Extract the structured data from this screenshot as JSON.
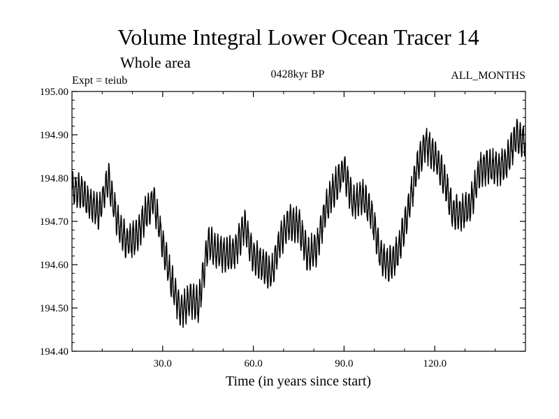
{
  "chart_data": {
    "type": "line",
    "title": "Volume Integral Lower Ocean Tracer 14",
    "subtitle": "Whole area",
    "expt_label": "Expt = teiub",
    "period_label": "0428kyr BP",
    "months_label": "ALL_MONTHS",
    "xlabel": "Time (in years since start)",
    "ylabel": "",
    "xlim": [
      0,
      150
    ],
    "ylim": [
      194.4,
      195.0
    ],
    "x_ticks": [
      30,
      60,
      90,
      120
    ],
    "x_tick_labels": [
      "30.0",
      "60.0",
      "90.0",
      "120.0"
    ],
    "y_ticks": [
      194.4,
      194.5,
      194.6,
      194.7,
      194.8,
      194.9,
      195.0
    ],
    "y_tick_labels": [
      "194.40",
      "194.50",
      "194.60",
      "194.70",
      "194.80",
      "194.90",
      "195.00"
    ],
    "grid": false,
    "samples_per_year": 12,
    "seasonal_amplitude": 0.035,
    "series": [
      {
        "name": "Tracer 14 volume integral",
        "color": "#000000",
        "trend": {
          "x": [
            0,
            3,
            6,
            9,
            12,
            15,
            18,
            21,
            24,
            27,
            30,
            33,
            36,
            39,
            42,
            45,
            48,
            51,
            54,
            57,
            60,
            63,
            66,
            69,
            72,
            75,
            78,
            81,
            84,
            87,
            90,
            93,
            96,
            99,
            102,
            105,
            108,
            111,
            114,
            117,
            120,
            123,
            126,
            129,
            132,
            135,
            138,
            141,
            144,
            147,
            150
          ],
          "values": [
            194.77,
            194.77,
            194.74,
            194.72,
            194.8,
            194.7,
            194.65,
            194.66,
            194.71,
            194.75,
            194.65,
            194.56,
            194.49,
            194.52,
            194.51,
            194.65,
            194.63,
            194.62,
            194.63,
            194.69,
            194.62,
            194.6,
            194.58,
            194.66,
            194.7,
            194.69,
            194.62,
            194.64,
            194.73,
            194.78,
            194.82,
            194.74,
            194.76,
            194.72,
            194.62,
            194.6,
            194.63,
            194.72,
            194.82,
            194.88,
            194.85,
            194.8,
            194.72,
            194.72,
            194.74,
            194.82,
            194.83,
            194.82,
            194.84,
            194.9,
            194.88
          ]
        }
      }
    ]
  }
}
